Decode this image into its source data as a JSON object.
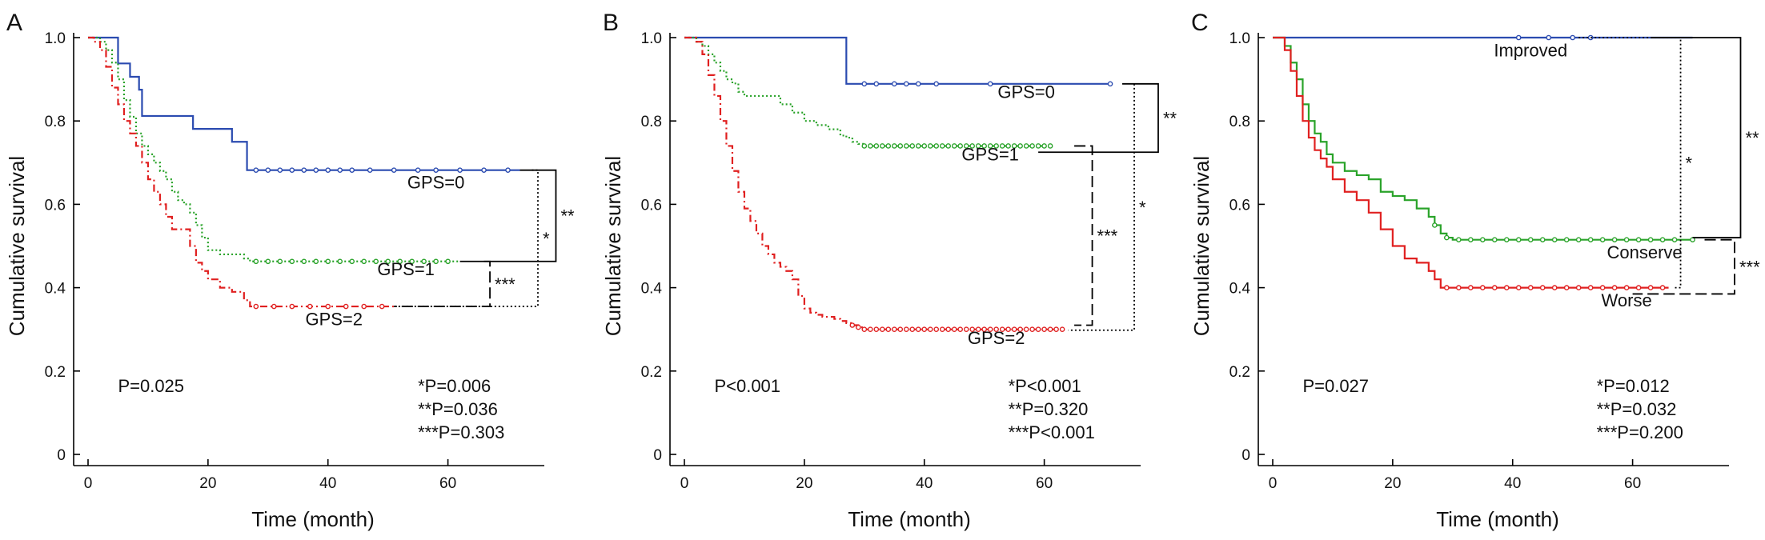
{
  "chart_data": [
    {
      "type": "line",
      "panel_label": "A",
      "xlabel": "Time (month)",
      "ylabel": "Cumulative survival",
      "xlim": [
        0,
        75
      ],
      "ylim": [
        0,
        1.0
      ],
      "xticks": [
        0,
        20,
        40,
        60
      ],
      "yticks": [
        0,
        0.2,
        0.4,
        0.6,
        0.8,
        1.0
      ],
      "ytick_labels": [
        "0",
        "0.2",
        "0.4",
        "0.6",
        "0.8",
        "1.0"
      ],
      "overall_p": "P=0.025",
      "pairwise": [
        "*P=0.006",
        "**P=0.036",
        "***P=0.303"
      ],
      "series": [
        {
          "name": "GPS=0",
          "color": "#2b4bb0",
          "dash": "solid",
          "x": [
            0,
            5,
            5,
            7,
            7,
            8.5,
            8.5,
            9,
            9,
            17.5,
            17.5,
            24,
            24,
            26.5,
            26.5,
            72
          ],
          "y": [
            1.0,
            1.0,
            0.938,
            0.938,
            0.906,
            0.906,
            0.875,
            0.875,
            0.812,
            0.812,
            0.781,
            0.781,
            0.75,
            0.75,
            0.682,
            0.682
          ],
          "censor_x": [
            28,
            30,
            32,
            34,
            36,
            38,
            40,
            42,
            44,
            47,
            51,
            55,
            58,
            62,
            66,
            70
          ]
        },
        {
          "name": "GPS=1",
          "color": "#2aa32a",
          "dash": "dotted",
          "x": [
            0,
            2,
            3,
            4,
            5,
            6,
            7,
            8,
            9,
            10,
            11,
            12,
            13,
            14,
            15,
            16,
            17,
            18,
            19,
            20,
            22,
            24,
            26,
            27,
            28,
            62
          ],
          "y": [
            1.0,
            0.99,
            0.97,
            0.94,
            0.9,
            0.85,
            0.81,
            0.77,
            0.74,
            0.72,
            0.7,
            0.68,
            0.66,
            0.63,
            0.61,
            0.6,
            0.58,
            0.55,
            0.52,
            0.49,
            0.48,
            0.48,
            0.47,
            0.463,
            0.463,
            0.463
          ],
          "censor_x": [
            28,
            30,
            32,
            34,
            36,
            38,
            40,
            42,
            44,
            46,
            48,
            50,
            52,
            54,
            56,
            58,
            60
          ]
        },
        {
          "name": "GPS=2",
          "color": "#e02020",
          "dash": "dashdot",
          "x": [
            0,
            1,
            2,
            3,
            4,
            5,
            6,
            7,
            8,
            9,
            10,
            11,
            12,
            13,
            14,
            15,
            16,
            17,
            18,
            19,
            20,
            21,
            22,
            24,
            26,
            27,
            28,
            51
          ],
          "y": [
            1.0,
            0.99,
            0.97,
            0.93,
            0.88,
            0.84,
            0.8,
            0.77,
            0.74,
            0.7,
            0.66,
            0.63,
            0.6,
            0.57,
            0.54,
            0.54,
            0.54,
            0.5,
            0.46,
            0.44,
            0.42,
            0.42,
            0.4,
            0.39,
            0.37,
            0.355,
            0.355,
            0.355
          ],
          "censor_x": [
            28,
            31,
            34,
            37,
            40,
            43,
            46,
            49
          ]
        }
      ],
      "labels": [
        {
          "text": "GPS=0",
          "x": 58,
          "y": 0.638
        },
        {
          "text": "GPS=1",
          "x": 53,
          "y": 0.43
        },
        {
          "text": "GPS=2",
          "x": 41,
          "y": 0.31
        }
      ],
      "brackets": [
        {
          "symbol": "**",
          "top": 0.682,
          "bottom": 0.463,
          "x_top": 72,
          "x_bottom": 62,
          "x_v": 78,
          "style": "solid"
        },
        {
          "symbol": "***",
          "top": 0.463,
          "bottom": 0.355,
          "x_top": 66,
          "x_bottom": 51,
          "x_v": 67,
          "style": "dashed"
        },
        {
          "symbol": "*",
          "top": 0.682,
          "bottom": 0.355,
          "x_top": 74,
          "x_bottom": 51,
          "x_v": 75,
          "style": "dotted"
        }
      ],
      "pval_pos": {
        "overall": [
          5,
          0.15
        ],
        "pairwise": [
          55,
          0.15
        ]
      }
    },
    {
      "type": "line",
      "panel_label": "B",
      "xlabel": "Time (month)",
      "ylabel": "Cumulative survival",
      "xlim": [
        0,
        75
      ],
      "ylim": [
        0,
        1.0
      ],
      "xticks": [
        0,
        20,
        40,
        60
      ],
      "yticks": [
        0,
        0.2,
        0.4,
        0.6,
        0.8,
        1.0
      ],
      "ytick_labels": [
        "0",
        "0.2",
        "0.4",
        "0.6",
        "0.8",
        "1.0"
      ],
      "overall_p": "P<0.001",
      "pairwise": [
        "*P<0.001",
        "**P=0.320",
        "***P<0.001"
      ],
      "series": [
        {
          "name": "GPS=0",
          "color": "#2b4bb0",
          "dash": "solid",
          "x": [
            0,
            27,
            27,
            71
          ],
          "y": [
            1.0,
            1.0,
            0.889,
            0.889
          ],
          "censor_x": [
            30,
            32,
            35,
            37,
            39,
            42,
            51,
            71
          ]
        },
        {
          "name": "GPS=1",
          "color": "#2aa32a",
          "dash": "dotted",
          "x": [
            0,
            2,
            3,
            4,
            5,
            6,
            7,
            8,
            9,
            10,
            12,
            14,
            16,
            18,
            20,
            22,
            24,
            26,
            27,
            28,
            29,
            30,
            61
          ],
          "y": [
            1.0,
            0.99,
            0.98,
            0.96,
            0.94,
            0.92,
            0.9,
            0.89,
            0.87,
            0.86,
            0.86,
            0.86,
            0.84,
            0.82,
            0.8,
            0.79,
            0.78,
            0.765,
            0.76,
            0.75,
            0.745,
            0.74,
            0.74
          ],
          "censor_x": [
            30,
            31,
            32,
            33,
            34,
            35,
            36,
            37,
            38,
            39,
            40,
            41,
            42,
            43,
            44,
            45,
            46,
            47,
            48,
            49,
            50,
            51,
            52,
            53,
            54,
            55,
            56,
            57,
            58,
            59,
            60,
            61
          ]
        },
        {
          "name": "GPS=2",
          "color": "#e02020",
          "dash": "dashdot",
          "x": [
            0,
            2,
            3,
            4,
            5,
            6,
            7,
            8,
            9,
            10,
            11,
            12,
            13,
            14,
            15,
            16,
            17,
            18,
            19,
            20,
            21,
            22,
            23,
            24,
            25,
            26,
            27,
            28,
            29,
            30,
            63
          ],
          "y": [
            1.0,
            0.99,
            0.96,
            0.91,
            0.86,
            0.8,
            0.74,
            0.68,
            0.63,
            0.59,
            0.56,
            0.53,
            0.5,
            0.48,
            0.46,
            0.45,
            0.44,
            0.42,
            0.38,
            0.35,
            0.34,
            0.335,
            0.33,
            0.33,
            0.325,
            0.32,
            0.315,
            0.31,
            0.305,
            0.3,
            0.3
          ],
          "censor_x": [
            28,
            29,
            30,
            31,
            32,
            33,
            34,
            35,
            36,
            37,
            38,
            39,
            40,
            41,
            42,
            43,
            44,
            45,
            46,
            47,
            48,
            49,
            50,
            51,
            52,
            53,
            54,
            55,
            56,
            57,
            58,
            59,
            60,
            61,
            62,
            63
          ]
        }
      ],
      "labels": [
        {
          "text": "GPS=0",
          "x": 57,
          "y": 0.855
        },
        {
          "text": "GPS=1",
          "x": 51,
          "y": 0.705
        },
        {
          "text": "GPS=2",
          "x": 52,
          "y": 0.265
        }
      ],
      "brackets": [
        {
          "symbol": "**",
          "top": 0.889,
          "bottom": 0.725,
          "x_top": 73,
          "x_bottom": 59,
          "x_v": 79,
          "style": "solid"
        },
        {
          "symbol": "***",
          "top": 0.74,
          "bottom": 0.31,
          "x_top": 65,
          "x_bottom": 65,
          "x_v": 68,
          "style": "dashed"
        },
        {
          "symbol": "*",
          "top": 0.889,
          "bottom": 0.298,
          "x_top": 75,
          "x_bottom": 64,
          "x_v": 75,
          "style": "dotted"
        }
      ],
      "pval_pos": {
        "overall": [
          5,
          0.15
        ],
        "pairwise": [
          54,
          0.15
        ]
      }
    },
    {
      "type": "line",
      "panel_label": "C",
      "xlabel": "Time (month)",
      "ylabel": "Cumulative survival",
      "xlim": [
        0,
        75
      ],
      "ylim": [
        0,
        1.0
      ],
      "xticks": [
        0,
        20,
        40,
        60
      ],
      "yticks": [
        0,
        0.2,
        0.4,
        0.6,
        0.8,
        1.0
      ],
      "ytick_labels": [
        "0",
        "0.2",
        "0.4",
        "0.6",
        "0.8",
        "1.0"
      ],
      "overall_p": "P=0.027",
      "pairwise": [
        "*P=0.012",
        "**P=0.032",
        "***P=0.200"
      ],
      "series": [
        {
          "name": "Improved",
          "color": "#2b4bb0",
          "dash": "solid",
          "x": [
            0,
            70
          ],
          "y": [
            1.0,
            1.0
          ],
          "censor_x": [
            41,
            46,
            50,
            53
          ]
        },
        {
          "name": "Conserve",
          "color": "#2aa32a",
          "dash": "solid",
          "x": [
            0,
            2,
            3,
            4,
            5,
            6,
            7,
            8,
            9,
            10,
            12,
            14,
            16,
            18,
            20,
            22,
            24,
            26,
            27,
            28,
            29,
            30,
            70
          ],
          "y": [
            1.0,
            0.98,
            0.94,
            0.9,
            0.84,
            0.8,
            0.77,
            0.75,
            0.72,
            0.7,
            0.68,
            0.67,
            0.66,
            0.63,
            0.62,
            0.61,
            0.59,
            0.57,
            0.55,
            0.53,
            0.52,
            0.515,
            0.515
          ],
          "censor_x": [
            27,
            29,
            31,
            33,
            35,
            37,
            39,
            41,
            43,
            45,
            47,
            49,
            51,
            53,
            55,
            57,
            59,
            61,
            63,
            65,
            67,
            70
          ]
        },
        {
          "name": "Worse",
          "color": "#e02020",
          "dash": "solid",
          "x": [
            0,
            2,
            3,
            4,
            5,
            6,
            7,
            8,
            9,
            10,
            12,
            14,
            16,
            18,
            20,
            22,
            24,
            26,
            27,
            28,
            30,
            66
          ],
          "y": [
            1.0,
            0.97,
            0.92,
            0.86,
            0.8,
            0.76,
            0.73,
            0.71,
            0.69,
            0.66,
            0.63,
            0.61,
            0.58,
            0.54,
            0.5,
            0.47,
            0.46,
            0.44,
            0.42,
            0.4,
            0.4,
            0.4
          ],
          "censor_x": [
            29,
            31,
            33,
            35,
            37,
            39,
            41,
            43,
            45,
            47,
            49,
            51,
            53,
            55,
            57,
            59,
            61,
            63,
            65
          ]
        }
      ],
      "labels": [
        {
          "text": "Improved",
          "x": 43,
          "y": 0.955
        },
        {
          "text": "Conserve",
          "x": 62,
          "y": 0.47
        },
        {
          "text": "Worse",
          "x": 59,
          "y": 0.355
        }
      ],
      "brackets": [
        {
          "symbol": "**",
          "top": 1.0,
          "bottom": 0.52,
          "x_top": 63,
          "x_bottom": 70,
          "x_v": 78,
          "style": "solid"
        },
        {
          "symbol": "***",
          "top": 0.515,
          "bottom": 0.385,
          "x_top": 72,
          "x_bottom": 60,
          "x_v": 77,
          "style": "dashed"
        },
        {
          "symbol": "*",
          "top": 1.0,
          "bottom": 0.4,
          "x_top": 51,
          "x_bottom": 67,
          "x_v": 68,
          "style": "dotted"
        }
      ],
      "pval_pos": {
        "overall": [
          5,
          0.15
        ],
        "pairwise": [
          54,
          0.15
        ]
      }
    }
  ]
}
